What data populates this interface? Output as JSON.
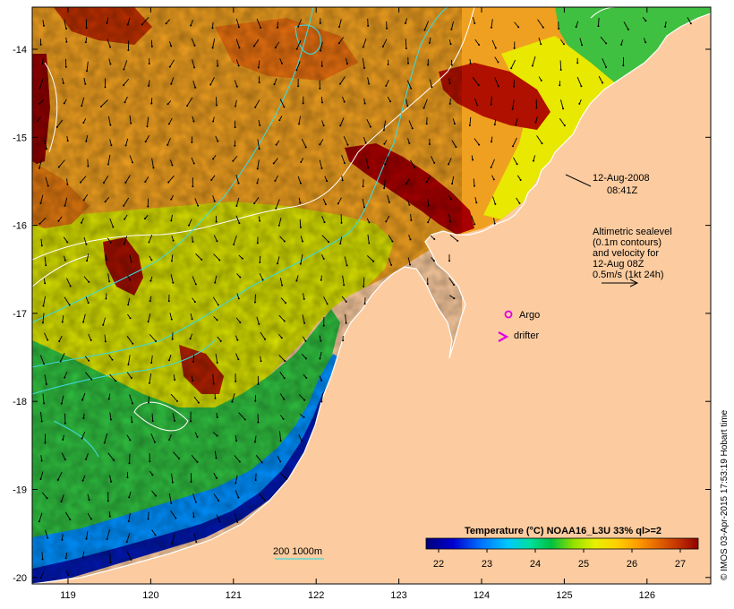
{
  "colors": {
    "land": "#fccca0",
    "coast": "#ffffff",
    "frame": "#000000",
    "argo": "#e000e0",
    "drifter": "#e000e0",
    "contour": "#40d8d8",
    "sealevel": "#ffffff"
  },
  "axes": {
    "lon_ticks": [
      "119",
      "120",
      "121",
      "122",
      "123",
      "124",
      "125",
      "126"
    ],
    "lat_ticks": [
      "-14",
      "-15",
      "-16",
      "-17",
      "-18",
      "-19",
      "-20"
    ]
  },
  "annotations": {
    "date": "12-Aug-2008",
    "time": "08:41Z",
    "altimetry_line1": "Altimetric sealevel",
    "altimetry_line2": "(0.1m contours)",
    "altimetry_line3": "and velocity for",
    "altimetry_line4": "12-Aug 08Z",
    "altimetry_line5": "0.5m/s (1kt 24h)",
    "argo_label": "Argo",
    "drifter_label": "drifter",
    "contour_legend": "200  1000m"
  },
  "colorbar": {
    "title": "Temperature (°C) NOAA16_L3U 33% ql>=2",
    "ticks": [
      "22",
      "23",
      "24",
      "25",
      "26",
      "27"
    ],
    "stops": [
      "#00007a",
      "#0000d8",
      "#0060ff",
      "#00c0ff",
      "#00e0a0",
      "#00c040",
      "#80e000",
      "#e0f000",
      "#ffd000",
      "#ff9000",
      "#e06000",
      "#c03000",
      "#900000"
    ]
  },
  "credit": "© IMOS 03-Apr-2015 17:53:19 Hobart time"
}
